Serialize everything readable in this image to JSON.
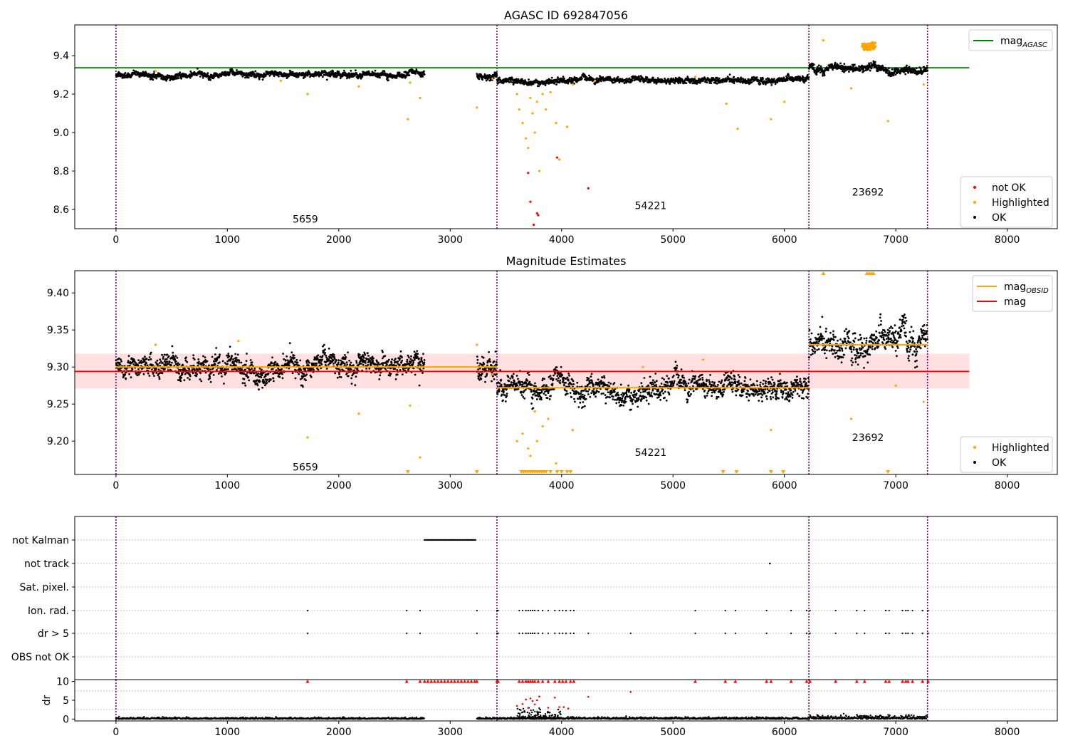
{
  "chart_data": [
    {
      "type": "scatter",
      "title": "AGASC ID 692847056",
      "xlim": [
        -370,
        8450
      ],
      "ylim": [
        8.5,
        9.56
      ],
      "xticks": [
        "0",
        "1000",
        "2000",
        "3000",
        "4000",
        "5000",
        "6000",
        "7000",
        "8000"
      ],
      "yticks": [
        "8.6",
        "8.8",
        "9.0",
        "9.2",
        "9.4"
      ],
      "obsid_boundaries": [
        0,
        3420,
        6220,
        7285
      ],
      "obsid_labels": [
        {
          "text": "5659",
          "x": 1700,
          "y": 8.55
        },
        {
          "text": "54221",
          "x": 4800,
          "y": 8.62
        },
        {
          "text": "23692",
          "x": 6750,
          "y": 8.69
        }
      ],
      "reference_line": {
        "name": "mag",
        "sub": "AGASC",
        "y": 9.337,
        "x_range": [
          -370,
          7660
        ],
        "color": "#008000"
      },
      "ok_segments": [
        {
          "x": [
            0,
            2770
          ],
          "center": 9.3,
          "spread": 0.012
        },
        {
          "x": [
            3240,
            3420
          ],
          "center": 9.3,
          "spread": 0.012
        },
        {
          "x": [
            3420,
            6220
          ],
          "center": 9.272,
          "spread": 0.012
        },
        {
          "x": [
            6220,
            7285
          ],
          "center": 9.33,
          "spread": 0.015
        }
      ],
      "highlighted_points": [
        [
          355,
          9.32
        ],
        [
          1480,
          9.27
        ],
        [
          1720,
          9.2
        ],
        [
          2180,
          9.24
        ],
        [
          2620,
          9.07
        ],
        [
          2640,
          9.26
        ],
        [
          2730,
          9.18
        ],
        [
          3240,
          9.13
        ],
        [
          3380,
          9.28
        ],
        [
          3600,
          9.2
        ],
        [
          3620,
          9.12
        ],
        [
          3650,
          9.05
        ],
        [
          3680,
          8.97
        ],
        [
          3700,
          8.92
        ],
        [
          3720,
          9.18
        ],
        [
          3740,
          9.1
        ],
        [
          3760,
          9.0
        ],
        [
          3780,
          9.16
        ],
        [
          3800,
          8.8
        ],
        [
          3830,
          9.2
        ],
        [
          3860,
          9.12
        ],
        [
          3900,
          9.21
        ],
        [
          3950,
          9.05
        ],
        [
          3980,
          8.86
        ],
        [
          4050,
          9.03
        ],
        [
          4100,
          9.25
        ],
        [
          4300,
          9.27
        ],
        [
          5200,
          9.29
        ],
        [
          5480,
          9.15
        ],
        [
          5580,
          9.02
        ],
        [
          5880,
          9.07
        ],
        [
          6000,
          9.16
        ],
        [
          6350,
          9.48
        ],
        [
          6600,
          9.23
        ],
        [
          6930,
          9.06
        ],
        [
          7250,
          9.25
        ]
      ],
      "highlighted_cluster": {
        "x": [
          6700,
          6820
        ],
        "y": [
          9.43,
          9.47
        ]
      },
      "not_ok_points": [
        [
          3700,
          8.79
        ],
        [
          3720,
          8.64
        ],
        [
          3750,
          8.52
        ],
        [
          3790,
          8.57
        ],
        [
          3960,
          8.87
        ],
        [
          4240,
          8.71
        ],
        [
          3780,
          8.58
        ]
      ],
      "legend_top": [
        {
          "label": "mag",
          "sub": "AGASC",
          "color": "#008000"
        }
      ],
      "legend_bottom": [
        {
          "label": "not OK",
          "color": "#ff0000"
        },
        {
          "label": "Highlighted",
          "color": "#ffa500"
        },
        {
          "label": "OK",
          "color": "#000000"
        }
      ]
    },
    {
      "type": "scatter",
      "title": "Magnitude Estimates",
      "xlim": [
        -370,
        8450
      ],
      "ylim": [
        9.155,
        9.43
      ],
      "xticks": [
        "0",
        "1000",
        "2000",
        "3000",
        "4000",
        "5000",
        "6000",
        "7000",
        "8000"
      ],
      "yticks": [
        "9.20",
        "9.25",
        "9.30",
        "9.35",
        "9.40"
      ],
      "obsid_boundaries": [
        0,
        3420,
        6220,
        7285
      ],
      "obsid_labels": [
        {
          "text": "5659",
          "x": 1700,
          "y": 9.165
        },
        {
          "text": "54221",
          "x": 4800,
          "y": 9.185
        },
        {
          "text": "23692",
          "x": 6750,
          "y": 9.205
        }
      ],
      "mag_band": {
        "y": [
          9.271,
          9.318
        ],
        "x_range": [
          -370,
          7660
        ],
        "color": "#ff000022"
      },
      "mag_line": {
        "name": "mag",
        "y": 9.294,
        "x_range": [
          -370,
          7660
        ],
        "color": "#ff0000"
      },
      "obsid_mag_lines": [
        {
          "x": [
            0,
            3420
          ],
          "y": 9.3
        },
        {
          "x": [
            3420,
            6220
          ],
          "y": 9.272
        },
        {
          "x": [
            6220,
            7285
          ],
          "y": 9.33
        }
      ],
      "ok_segments": [
        {
          "x": [
            0,
            2770
          ],
          "center": 9.3,
          "spread": 0.012
        },
        {
          "x": [
            3240,
            3420
          ],
          "center": 9.3,
          "spread": 0.012
        },
        {
          "x": [
            3420,
            6220
          ],
          "center": 9.272,
          "spread": 0.012
        },
        {
          "x": [
            6220,
            7285
          ],
          "center": 9.33,
          "spread": 0.015
        }
      ],
      "highlighted_points": [
        [
          355,
          9.33
        ],
        [
          1100,
          9.335
        ],
        [
          1720,
          9.205
        ],
        [
          2180,
          9.237
        ],
        [
          2640,
          9.248
        ],
        [
          2730,
          9.178
        ],
        [
          3240,
          9.33
        ],
        [
          3380,
          9.29
        ],
        [
          3600,
          9.2
        ],
        [
          3650,
          9.21
        ],
        [
          3700,
          9.19
        ],
        [
          3720,
          9.18
        ],
        [
          3760,
          9.24
        ],
        [
          3780,
          9.2
        ],
        [
          3830,
          9.22
        ],
        [
          3880,
          9.23
        ],
        [
          3950,
          9.17
        ],
        [
          4100,
          9.215
        ],
        [
          4730,
          9.3
        ],
        [
          5270,
          9.31
        ],
        [
          5880,
          9.215
        ],
        [
          6600,
          9.23
        ],
        [
          7000,
          9.275
        ],
        [
          7250,
          9.253
        ]
      ],
      "clipped_low_x": [
        2620,
        3240,
        3640,
        3660,
        3680,
        3700,
        3720,
        3740,
        3760,
        3780,
        3800,
        3820,
        3840,
        3860,
        3900,
        3960,
        4000,
        4050,
        4080,
        5450,
        5570,
        5880,
        5990,
        6930
      ],
      "clipped_high_x": [
        6350,
        6740,
        6760,
        6780,
        6800
      ],
      "legend_top": [
        {
          "label": "mag",
          "sub": "OBSID",
          "color": "#ffa500"
        },
        {
          "label": "mag",
          "sub": "",
          "color": "#ff0000"
        }
      ],
      "legend_bottom": [
        {
          "label": "Highlighted",
          "color": "#ffa500"
        },
        {
          "label": "OK",
          "color": "#000000"
        }
      ]
    },
    {
      "type": "scatter",
      "title": "",
      "xlim": [
        -370,
        8450
      ],
      "xticks": [
        "0",
        "1000",
        "2000",
        "3000",
        "4000",
        "5000",
        "6000",
        "7000",
        "8000"
      ],
      "flag_labels": [
        "not Kalman",
        "not track",
        "Sat. pixel.",
        "Ion. rad.",
        "dr > 5",
        "OBS not OK"
      ],
      "obsid_boundaries": [
        0,
        3420,
        6220,
        7285
      ],
      "not_kalman_range": [
        2770,
        3230
      ],
      "not_track_x": [
        5870
      ],
      "ion_rad_x": [
        1720,
        2610,
        2730,
        3240,
        3420,
        3430,
        3620,
        3650,
        3680,
        3700,
        3720,
        3740,
        3760,
        3790,
        3830,
        3880,
        3940,
        3980,
        4010,
        4040,
        4080,
        4110,
        5200,
        5470,
        5560,
        5840,
        6060,
        6200,
        6230,
        6460,
        6650,
        6720,
        6910,
        6940,
        7060,
        7090,
        7110,
        7150,
        7240,
        7290
      ],
      "dr_gt5_x": [
        1720,
        2610,
        2730,
        3240,
        3420,
        3430,
        3620,
        3650,
        3680,
        3700,
        3720,
        3740,
        3760,
        3790,
        3830,
        3880,
        3940,
        3980,
        4010,
        4040,
        4080,
        4110,
        4240,
        4620,
        5200,
        5470,
        5560,
        5840,
        6060,
        6200,
        6230,
        6460,
        6650,
        6720,
        6910,
        6940,
        7060,
        7090,
        7110,
        7150,
        7240,
        7290
      ]
    },
    {
      "type": "scatter",
      "title": "",
      "ylabel": "dr",
      "xlim": [
        -370,
        8450
      ],
      "ylim": [
        -0.5,
        10.5
      ],
      "xticks": [
        "0",
        "1000",
        "2000",
        "3000",
        "4000",
        "5000",
        "6000",
        "7000",
        "8000"
      ],
      "yticks": [
        "0",
        "5",
        "10"
      ],
      "ok_segments": [
        {
          "x": [
            0,
            2770
          ],
          "level": 0.25
        },
        {
          "x": [
            3240,
            3420
          ],
          "level": 0.25
        },
        {
          "x": [
            3420,
            6220
          ],
          "level": 0.3
        },
        {
          "x": [
            6220,
            7285
          ],
          "level": 0.6
        }
      ],
      "large_dr_points": [
        [
          3600,
          3.5
        ],
        [
          3650,
          4.0
        ],
        [
          3680,
          5.2
        ],
        [
          3700,
          3.0
        ],
        [
          3720,
          5.5
        ],
        [
          3740,
          4.8
        ],
        [
          3760,
          3.9
        ],
        [
          3780,
          5.0
        ],
        [
          3800,
          6.0
        ],
        [
          3880,
          3.0
        ],
        [
          3940,
          5.7
        ],
        [
          3980,
          3.2
        ],
        [
          4020,
          3.2
        ],
        [
          4060,
          2.8
        ],
        [
          4240,
          5.9
        ],
        [
          4620,
          7.2
        ]
      ],
      "capped_x": [
        1720,
        2610,
        2730,
        2770,
        2800,
        2830,
        2860,
        2890,
        2920,
        2950,
        2980,
        3010,
        3040,
        3070,
        3100,
        3130,
        3160,
        3190,
        3220,
        3240,
        3420,
        3430,
        3620,
        3650,
        3680,
        3700,
        3720,
        3740,
        3760,
        3790,
        3830,
        3880,
        3940,
        3980,
        4010,
        4040,
        4080,
        4110,
        5200,
        5470,
        5560,
        5840,
        5880,
        6060,
        6200,
        6230,
        6460,
        6650,
        6720,
        6910,
        6940,
        7060,
        7090,
        7110,
        7150,
        7240,
        7290
      ]
    }
  ]
}
